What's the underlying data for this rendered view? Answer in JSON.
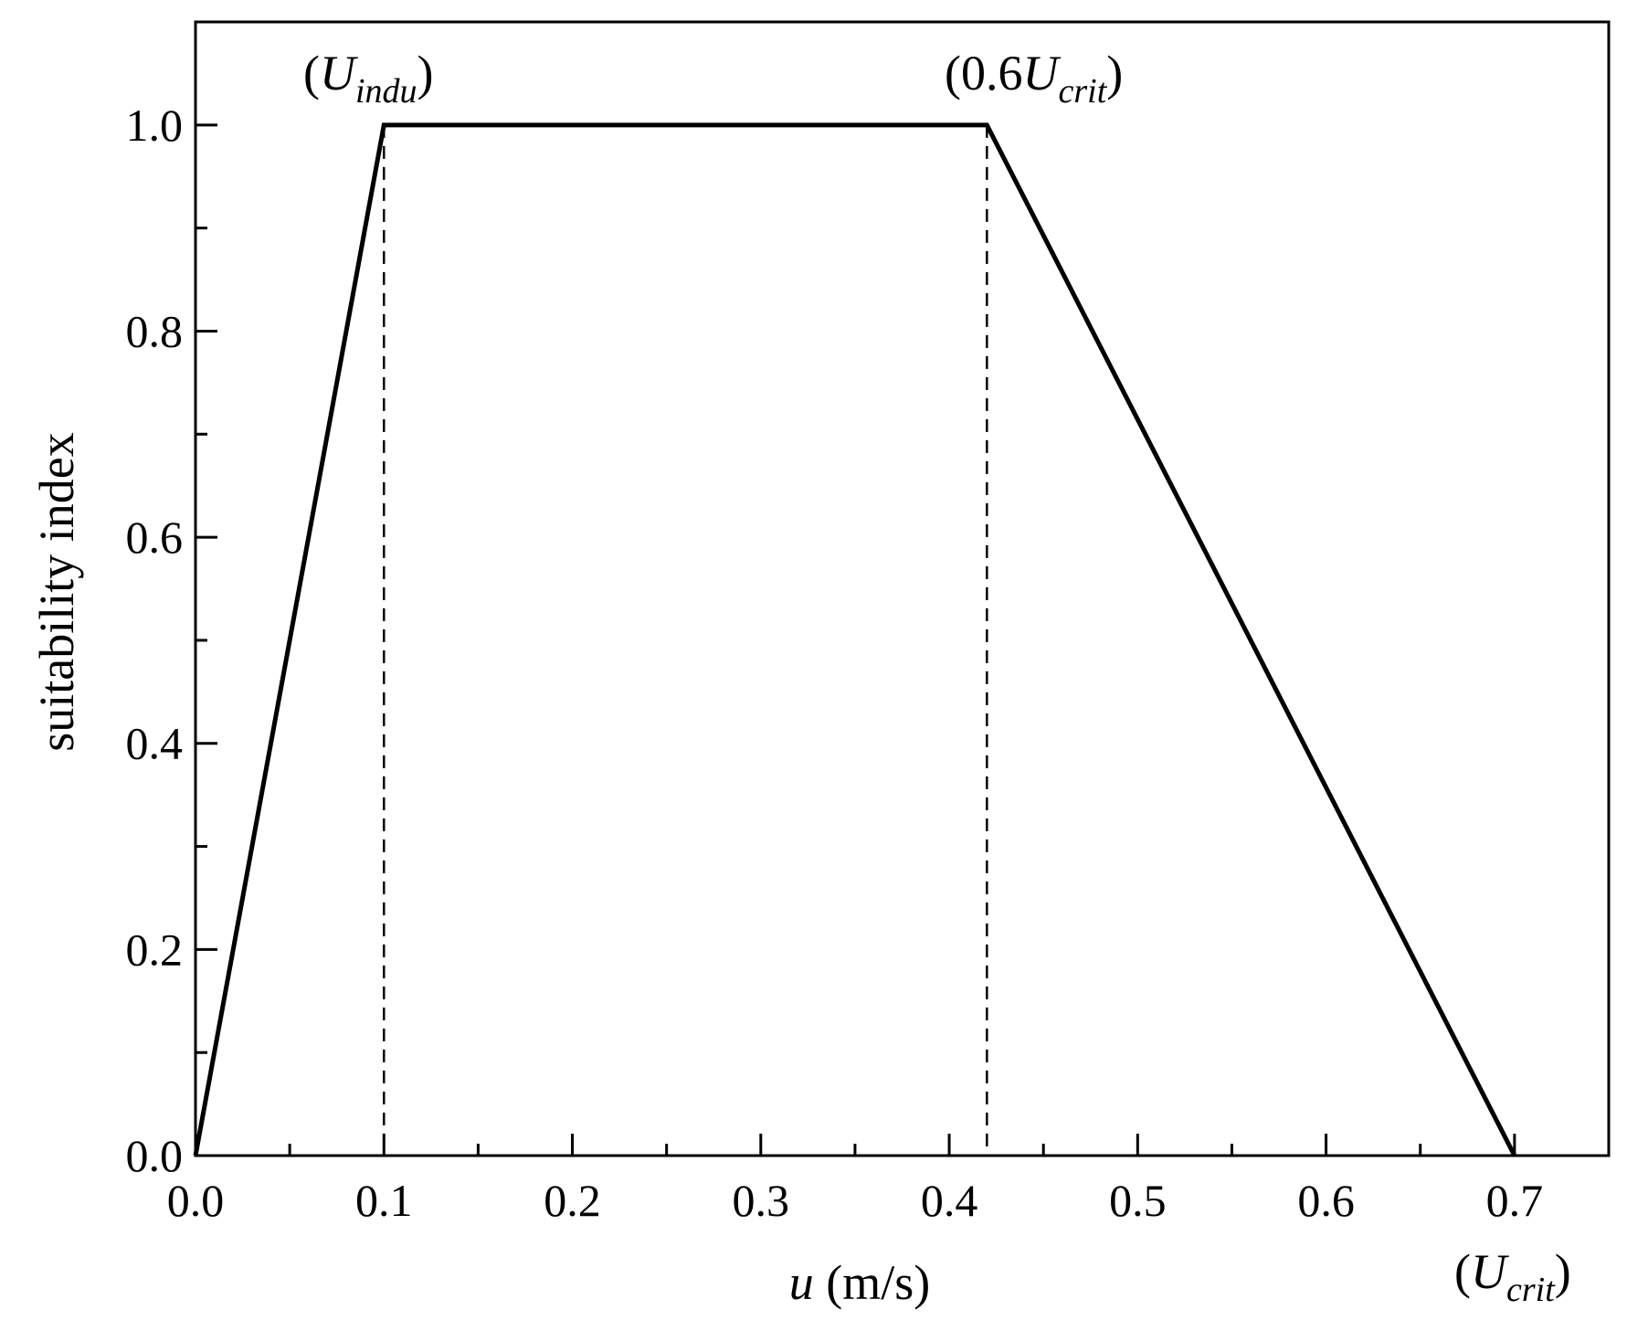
{
  "chart_data": {
    "type": "line",
    "title": "",
    "xlabel_var": "u",
    "xlabel_unit": " (m/s)",
    "ylabel": "suitability index",
    "xlim": [
      0,
      0.75
    ],
    "ylim": [
      0,
      1.1
    ],
    "x_ticks": [
      0.0,
      0.1,
      0.2,
      0.3,
      0.4,
      0.5,
      0.6,
      0.7
    ],
    "x_tick_labels": [
      "0.0",
      "0.1",
      "0.2",
      "0.3",
      "0.4",
      "0.5",
      "0.6",
      "0.7"
    ],
    "y_ticks": [
      0.0,
      0.2,
      0.4,
      0.6,
      0.8,
      1.0
    ],
    "y_tick_labels": [
      "0.0",
      "0.2",
      "0.4",
      "0.6",
      "0.8",
      "1.0"
    ],
    "grid": false,
    "line_color": "#000000",
    "series": [
      {
        "x": [
          0.0,
          0.1,
          0.42,
          0.7
        ],
        "y": [
          0.0,
          1.0,
          1.0,
          0.0
        ]
      }
    ],
    "reference_lines": [
      {
        "x": 0.1,
        "style": "dashed"
      },
      {
        "x": 0.42,
        "style": "dashed"
      }
    ],
    "annotations": {
      "u_indu": {
        "open": "(",
        "base": "U",
        "sub": "indu",
        "close": ")"
      },
      "u_06crit": {
        "open": "(0.6",
        "base": "U",
        "sub": "crit",
        "close": ")"
      },
      "u_crit": {
        "open": "(",
        "base": "U",
        "sub": "crit",
        "close": ")"
      }
    }
  }
}
